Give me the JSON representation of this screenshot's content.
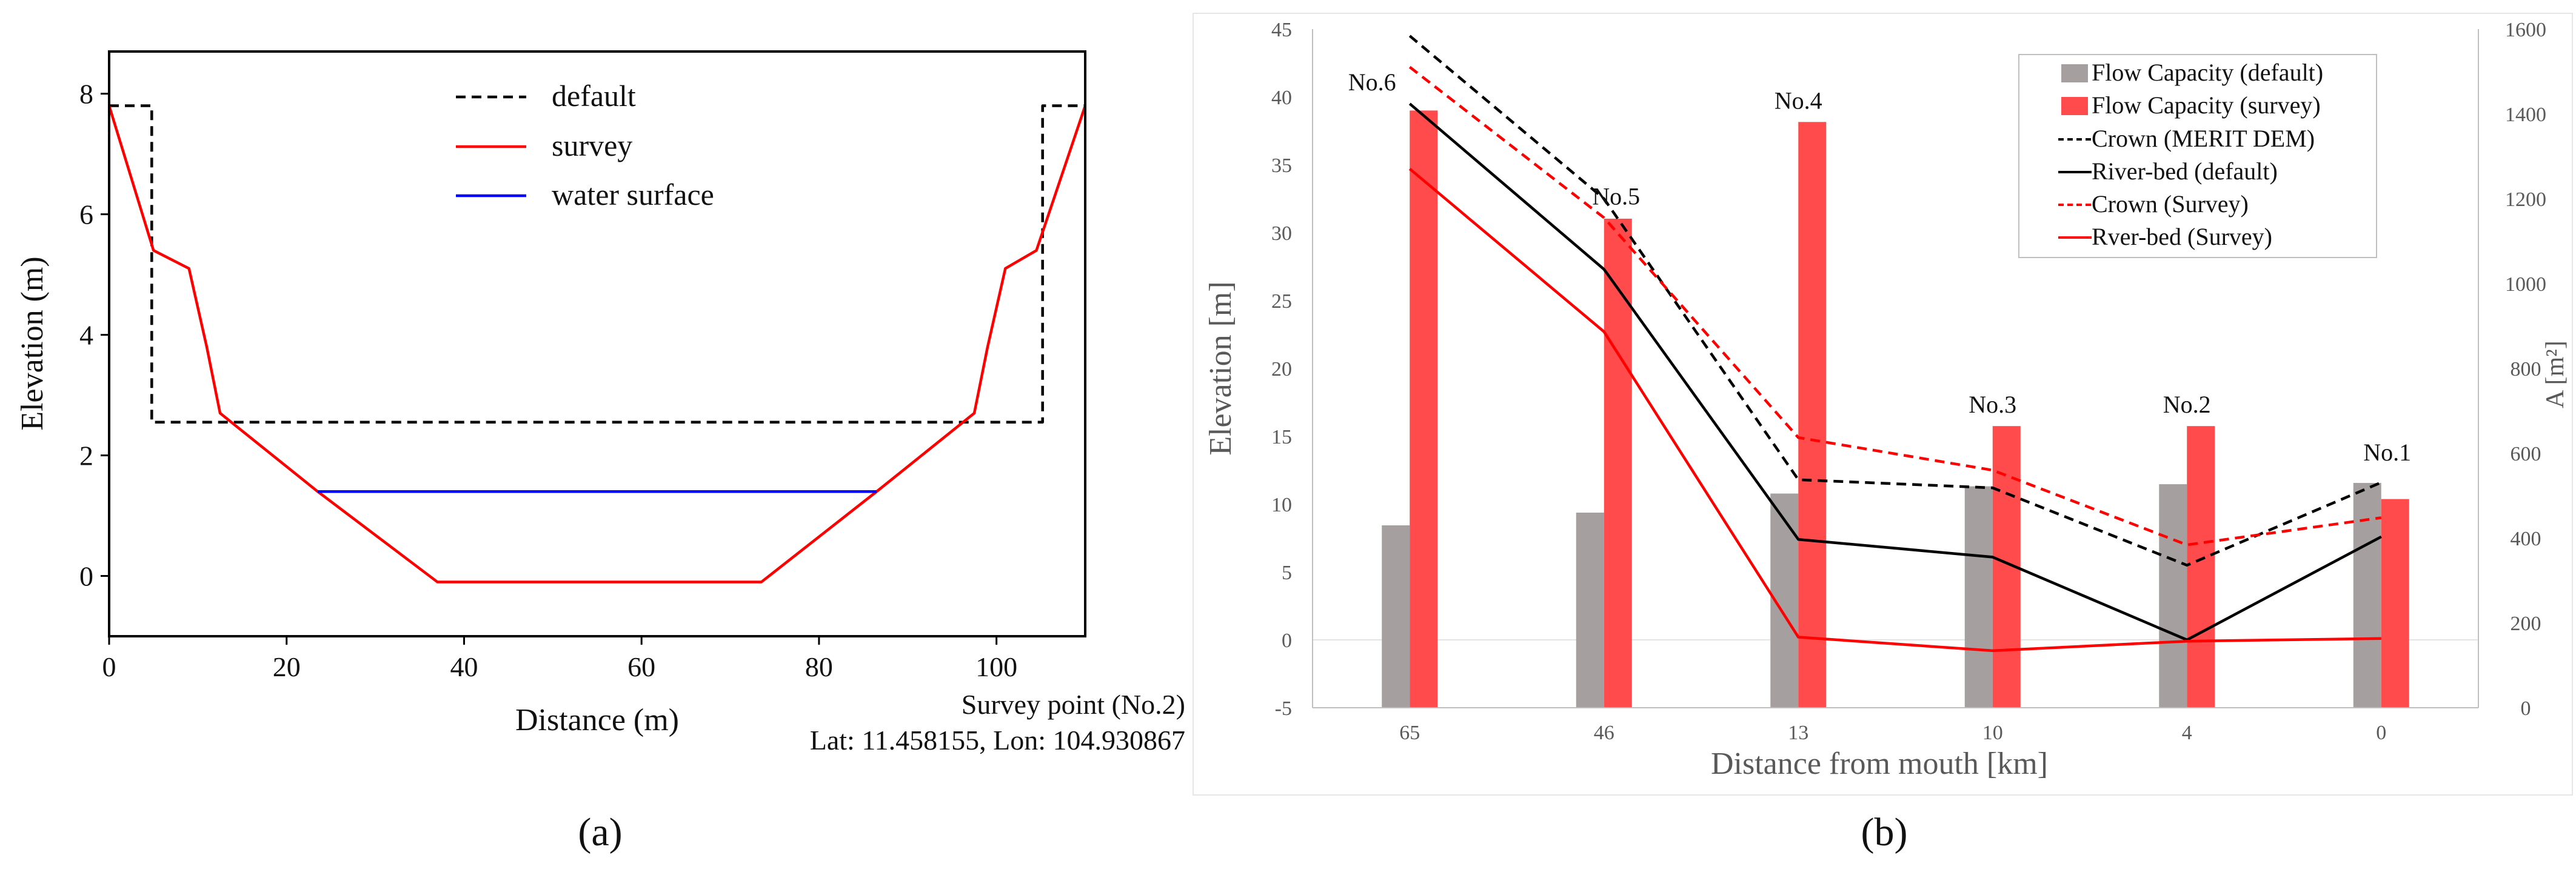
{
  "chart_data": [
    {
      "type": "line",
      "panel_label": "(a)",
      "xlabel": "Distance (m)",
      "ylabel": "Elevation (m)",
      "xlim": [
        0,
        110
      ],
      "ylim": [
        -1,
        8.7
      ],
      "xticks": [
        0,
        20,
        40,
        60,
        80,
        100
      ],
      "yticks": [
        0,
        2,
        4,
        6,
        8
      ],
      "legend_position": "top-center",
      "series": [
        {
          "name": "default",
          "style": "dashed",
          "color": "#000000",
          "x": [
            0,
            4.8,
            4.8,
            105.2,
            105.2,
            110
          ],
          "y": [
            7.8,
            7.8,
            2.55,
            2.55,
            7.8,
            7.8
          ]
        },
        {
          "name": "survey",
          "style": "solid",
          "color": "#ff0000",
          "x": [
            0,
            5,
            9,
            11,
            12.5,
            23.5,
            37,
            73.5,
            86.5,
            97.5,
            99,
            101,
            104.5,
            110
          ],
          "y": [
            7.8,
            5.4,
            5.1,
            3.8,
            2.7,
            1.4,
            -0.1,
            -0.1,
            1.4,
            2.7,
            3.8,
            5.1,
            5.4,
            7.8
          ]
        },
        {
          "name": "water surface",
          "style": "solid",
          "color": "#0000ff",
          "x": [
            23.5,
            86.5
          ],
          "y": [
            1.4,
            1.4
          ]
        }
      ],
      "annotation_line1": "Survey point (No.2)",
      "annotation_line2": "Lat: 11.458155, Lon: 104.930867"
    },
    {
      "type": "bar",
      "panel_label": "(b)",
      "xlabel": "Distance from mouth [km]",
      "ylabel": "Elevation [m]",
      "ylabel_right": "A [m²]",
      "categories": [
        "65",
        "46",
        "13",
        "10",
        "4",
        "0"
      ],
      "ylim": [
        -5,
        45
      ],
      "yticks": [
        -5,
        0,
        5,
        10,
        15,
        20,
        25,
        30,
        35,
        40,
        45
      ],
      "ylim_right": [
        0,
        1600
      ],
      "yticks_right": [
        0,
        200,
        400,
        600,
        800,
        1000,
        1200,
        1400,
        1600
      ],
      "legend_position": "top-right",
      "station_labels": [
        "No.6",
        "No.5",
        "No.4",
        "No.3",
        "No.2",
        "No.1"
      ],
      "bar_series": [
        {
          "name": "Flow Capacity (default)",
          "color": "#a59f9f",
          "axis": "right",
          "values": [
            430,
            460,
            505,
            522,
            527,
            530
          ]
        },
        {
          "name": "Flow Capacity (survey)",
          "color": "#ff4b4b",
          "axis": "right",
          "values": [
            1408,
            1153,
            1381,
            664,
            664,
            492
          ]
        }
      ],
      "line_series": [
        {
          "name": "Crown (MERIT DEM)",
          "style": "dashed",
          "color": "#000000",
          "axis": "left",
          "values": [
            44.5,
            32.5,
            11.8,
            11.2,
            5.5,
            11.6
          ]
        },
        {
          "name": "River-bed (default)",
          "style": "solid",
          "color": "#000000",
          "axis": "left",
          "values": [
            39.5,
            27.3,
            7.4,
            6.1,
            0.0,
            7.6
          ]
        },
        {
          "name": "Crown (Survey)",
          "style": "dashed",
          "color": "#ff0000",
          "axis": "left",
          "values": [
            42.2,
            31.1,
            14.9,
            12.5,
            7.0,
            9.0
          ]
        },
        {
          "name": "Rver-bed (Survey)",
          "style": "solid",
          "color": "#ff0000",
          "axis": "left",
          "values": [
            34.7,
            22.7,
            0.2,
            -0.8,
            -0.1,
            0.1
          ]
        }
      ]
    }
  ]
}
